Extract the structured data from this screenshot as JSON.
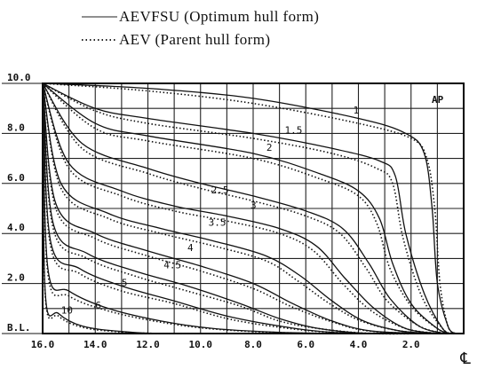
{
  "legend": [
    {
      "label": "AEVFSU (Optimum hull form)",
      "style": "solid"
    },
    {
      "label": "AEV (Parent hull form)",
      "style": "dotted"
    }
  ],
  "chart_data": {
    "type": "line",
    "title": "",
    "xlabel": "℄",
    "ylabel": "",
    "x_ticks": [
      "16.0",
      "14.0",
      "12.0",
      "10.0",
      "8.0",
      "6.0",
      "4.0",
      "2.0"
    ],
    "y_ticks": [
      "B.L.",
      "2.0",
      "4.0",
      "6.0",
      "8.0",
      "10.0"
    ],
    "xlim": [
      16.0,
      0
    ],
    "ylim": [
      0,
      10.0
    ],
    "grid": true,
    "corner_label": "AP",
    "series": [
      {
        "name": "1",
        "label_pos": [
          4.2,
          8.8
        ],
        "optimum": [
          [
            16,
            10
          ],
          [
            12,
            9.8
          ],
          [
            8,
            9.4
          ],
          [
            4,
            8.6
          ],
          [
            2.2,
            8.0
          ],
          [
            1.5,
            7.2
          ],
          [
            1.2,
            5
          ],
          [
            1.0,
            2
          ],
          [
            0.6,
            0.3
          ],
          [
            0.3,
            0
          ]
        ],
        "parent": [
          [
            16,
            10
          ],
          [
            12,
            9.7
          ],
          [
            8,
            9.2
          ],
          [
            4,
            8.4
          ],
          [
            2,
            7.8
          ],
          [
            1.4,
            7
          ],
          [
            1.1,
            5
          ],
          [
            0.9,
            2
          ],
          [
            0.6,
            0.3
          ],
          [
            0.3,
            0
          ]
        ]
      },
      {
        "name": "1.5",
        "label_pos": [
          6.8,
          8.0
        ],
        "optimum": [
          [
            16,
            10
          ],
          [
            14,
            9
          ],
          [
            12,
            8.6
          ],
          [
            8,
            8.0
          ],
          [
            5,
            7.4
          ],
          [
            3.2,
            6.9
          ],
          [
            2.6,
            6.3
          ],
          [
            2.2,
            4
          ],
          [
            1.5,
            1.6
          ],
          [
            0.8,
            0.2
          ],
          [
            0.4,
            0
          ]
        ],
        "parent": [
          [
            16,
            10
          ],
          [
            14,
            8.9
          ],
          [
            12,
            8.4
          ],
          [
            8,
            7.8
          ],
          [
            5,
            7.2
          ],
          [
            3.3,
            6.6
          ],
          [
            2.7,
            6
          ],
          [
            2.3,
            3.8
          ],
          [
            1.6,
            1.5
          ],
          [
            0.8,
            0.2
          ],
          [
            0.4,
            0
          ]
        ]
      },
      {
        "name": "2",
        "label_pos": [
          7.5,
          7.3
        ],
        "optimum": [
          [
            16,
            10
          ],
          [
            14,
            8.4
          ],
          [
            12,
            7.9
          ],
          [
            8,
            7.2
          ],
          [
            5.5,
            6.4
          ],
          [
            4,
            5.7
          ],
          [
            3.2,
            4.6
          ],
          [
            2.7,
            2.8
          ],
          [
            2,
            1.2
          ],
          [
            1,
            0.2
          ],
          [
            0.5,
            0
          ]
        ],
        "parent": [
          [
            16,
            10
          ],
          [
            14,
            8.2
          ],
          [
            12,
            7.7
          ],
          [
            8,
            7
          ],
          [
            5.5,
            6.2
          ],
          [
            4,
            5.5
          ],
          [
            3.3,
            4.4
          ],
          [
            2.8,
            2.6
          ],
          [
            2,
            1.1
          ],
          [
            1,
            0.2
          ],
          [
            0.5,
            0
          ]
        ]
      },
      {
        "name": "2.5",
        "label_pos": [
          9.6,
          5.6
        ],
        "optimum": [
          [
            16,
            10
          ],
          [
            14.5,
            7.6
          ],
          [
            12,
            6.6
          ],
          [
            10,
            6.0
          ],
          [
            8,
            5.5
          ],
          [
            6,
            4.9
          ],
          [
            4.6,
            4.2
          ],
          [
            3.6,
            2.8
          ],
          [
            2.8,
            1.4
          ],
          [
            1.7,
            0.3
          ],
          [
            0.7,
            0
          ]
        ],
        "parent": [
          [
            16,
            10
          ],
          [
            14.5,
            7.4
          ],
          [
            12,
            6.4
          ],
          [
            10,
            5.8
          ],
          [
            8,
            5.3
          ],
          [
            6,
            4.7
          ],
          [
            4.7,
            4.0
          ],
          [
            3.7,
            2.6
          ],
          [
            2.9,
            1.3
          ],
          [
            1.7,
            0.3
          ],
          [
            0.7,
            0
          ]
        ]
      },
      {
        "name": "3",
        "label_pos": [
          8.1,
          5.0
        ],
        "optimum": [
          [
            16,
            10
          ],
          [
            15,
            6.8
          ],
          [
            13,
            5.7
          ],
          [
            11,
            5.1
          ],
          [
            9,
            4.7
          ],
          [
            7,
            4.2
          ],
          [
            5.6,
            3.5
          ],
          [
            4.5,
            2.2
          ],
          [
            3.4,
            1.0
          ],
          [
            2.2,
            0.2
          ],
          [
            0.9,
            0
          ]
        ],
        "parent": [
          [
            16,
            10
          ],
          [
            15,
            6.6
          ],
          [
            13,
            5.5
          ],
          [
            11,
            4.9
          ],
          [
            9,
            4.5
          ],
          [
            7,
            4.0
          ],
          [
            5.7,
            3.3
          ],
          [
            4.6,
            2.0
          ],
          [
            3.5,
            0.9
          ],
          [
            2.2,
            0.2
          ],
          [
            0.9,
            0
          ]
        ]
      },
      {
        "name": "3.5",
        "label_pos": [
          9.7,
          4.3
        ],
        "optimum": [
          [
            16,
            10
          ],
          [
            15.3,
            6.0
          ],
          [
            13.5,
            4.8
          ],
          [
            11.5,
            4.2
          ],
          [
            9.5,
            3.7
          ],
          [
            7.5,
            3.1
          ],
          [
            6.2,
            2.3
          ],
          [
            5,
            1.3
          ],
          [
            3.8,
            0.5
          ],
          [
            2.4,
            0.1
          ],
          [
            1,
            0
          ]
        ],
        "parent": [
          [
            16,
            10
          ],
          [
            15.3,
            5.8
          ],
          [
            13.5,
            4.6
          ],
          [
            11.5,
            4.0
          ],
          [
            9.5,
            3.5
          ],
          [
            7.5,
            2.9
          ],
          [
            6.3,
            2.1
          ],
          [
            5.1,
            1.2
          ],
          [
            3.9,
            0.5
          ],
          [
            2.4,
            0.1
          ],
          [
            1,
            0
          ]
        ]
      },
      {
        "name": "4",
        "label_pos": [
          10.5,
          3.3
        ],
        "optimum": [
          [
            16,
            10
          ],
          [
            15.5,
            5.2
          ],
          [
            14,
            4.0
          ],
          [
            12,
            3.3
          ],
          [
            10,
            2.7
          ],
          [
            8,
            2.0
          ],
          [
            6.5,
            1.2
          ],
          [
            5,
            0.5
          ],
          [
            3.5,
            0.1
          ],
          [
            1.2,
            0
          ]
        ],
        "parent": [
          [
            16,
            10
          ],
          [
            15.5,
            5.0
          ],
          [
            14,
            3.8
          ],
          [
            12,
            3.1
          ],
          [
            10,
            2.5
          ],
          [
            8,
            1.8
          ],
          [
            6.6,
            1.1
          ],
          [
            5.1,
            0.5
          ],
          [
            3.6,
            0.1
          ],
          [
            1.2,
            0
          ]
        ]
      },
      {
        "name": "4.5",
        "label_pos": [
          11.4,
          2.6
        ],
        "optimum": [
          [
            16,
            10
          ],
          [
            15.6,
            4.4
          ],
          [
            14.3,
            3.2
          ],
          [
            12.5,
            2.5
          ],
          [
            10.5,
            1.9
          ],
          [
            8.5,
            1.2
          ],
          [
            7,
            0.6
          ],
          [
            5.5,
            0.2
          ],
          [
            3.5,
            0
          ],
          [
            1.3,
            0
          ]
        ],
        "parent": [
          [
            16,
            10
          ],
          [
            15.6,
            4.2
          ],
          [
            14.3,
            3.0
          ],
          [
            12.5,
            2.3
          ],
          [
            10.5,
            1.7
          ],
          [
            8.5,
            1.1
          ],
          [
            7,
            0.5
          ],
          [
            5.5,
            0.2
          ],
          [
            3.5,
            0
          ],
          [
            1.3,
            0
          ]
        ]
      },
      {
        "name": "5",
        "label_pos": [
          13.0,
          1.9
        ],
        "optimum": [
          [
            16,
            10
          ],
          [
            15.7,
            3.7
          ],
          [
            14.6,
            2.6
          ],
          [
            13,
            1.9
          ],
          [
            11,
            1.3
          ],
          [
            9,
            0.7
          ],
          [
            7,
            0.3
          ],
          [
            5,
            0.05
          ],
          [
            2,
            0
          ],
          [
            1.3,
            0
          ]
        ],
        "parent": [
          [
            16,
            10
          ],
          [
            15.7,
            3.5
          ],
          [
            14.6,
            2.4
          ],
          [
            13,
            1.7
          ],
          [
            11,
            1.2
          ],
          [
            9,
            0.6
          ],
          [
            7,
            0.25
          ],
          [
            5,
            0.05
          ],
          [
            2,
            0
          ],
          [
            1.3,
            0
          ]
        ]
      },
      {
        "name": "6",
        "label_pos": [
          14.0,
          1.0
        ],
        "optimum": [
          [
            16,
            10
          ],
          [
            15.8,
            2.6
          ],
          [
            15,
            1.7
          ],
          [
            13.5,
            1.0
          ],
          [
            11.5,
            0.5
          ],
          [
            9.5,
            0.2
          ],
          [
            7,
            0.05
          ],
          [
            4,
            0
          ],
          [
            1.4,
            0
          ]
        ],
        "parent": [
          [
            16,
            10
          ],
          [
            15.8,
            2.4
          ],
          [
            15,
            1.5
          ],
          [
            13.5,
            0.9
          ],
          [
            11.5,
            0.45
          ],
          [
            9.5,
            0.18
          ],
          [
            7,
            0.04
          ],
          [
            4,
            0
          ],
          [
            1.4,
            0
          ]
        ]
      },
      {
        "name": "10",
        "label_pos": [
          15.3,
          0.8
        ],
        "optimum": [
          [
            16,
            10
          ],
          [
            15.9,
            1.6
          ],
          [
            15.4,
            0.8
          ],
          [
            14.5,
            0.3
          ],
          [
            13,
            0.08
          ],
          [
            11,
            0
          ],
          [
            6,
            0
          ],
          [
            1.5,
            0
          ]
        ],
        "parent": [
          [
            16,
            10
          ],
          [
            15.9,
            1.5
          ],
          [
            15.4,
            0.7
          ],
          [
            14.5,
            0.25
          ],
          [
            13,
            0.06
          ],
          [
            11,
            0
          ],
          [
            6,
            0
          ],
          [
            1.5,
            0
          ]
        ]
      }
    ]
  }
}
